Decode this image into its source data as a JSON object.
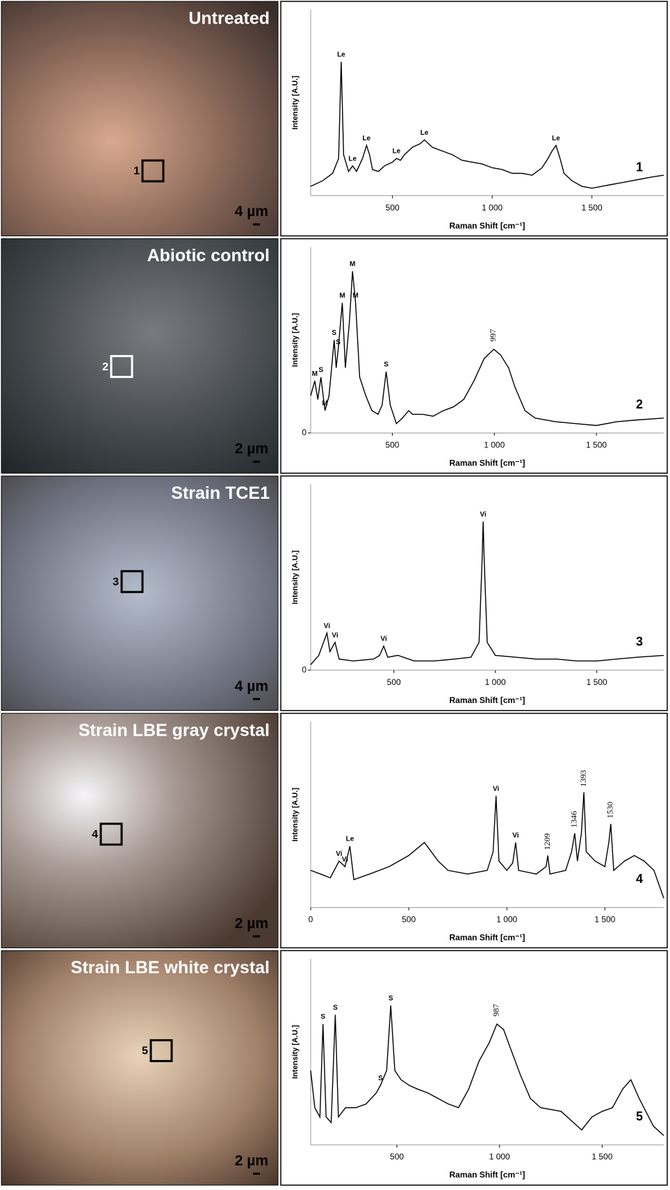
{
  "photos": [
    {
      "title": "Untreated",
      "scale": "4 µm",
      "marker": "1"
    },
    {
      "title": "Abiotic control",
      "scale": "2 µm",
      "marker": "2"
    },
    {
      "title": "Strain TCE1",
      "scale": "4 µm",
      "marker": "3"
    },
    {
      "title": "Strain LBE gray crystal",
      "scale": "2 µm",
      "marker": "4"
    },
    {
      "title": "Strain LBE white crystal",
      "scale": "2 µm",
      "marker": "5"
    }
  ],
  "chart_data": [
    {
      "type": "line",
      "x_label": "Raman Shift [cm⁻¹]",
      "y_label": "Intensity [A.U.]",
      "panel_label": "1",
      "color": "#000000",
      "xlim": [
        90,
        1860
      ],
      "ylim": [
        0,
        100
      ],
      "xticks": [
        500,
        {
          "value": 1000,
          "label": "1 000"
        },
        {
          "value": 1500,
          "label": "1 500"
        }
      ],
      "yticks": [],
      "x": [
        90,
        150,
        200,
        230,
        243,
        255,
        280,
        300,
        320,
        350,
        370,
        385,
        400,
        430,
        460,
        500,
        520,
        540,
        560,
        600,
        640,
        660,
        700,
        750,
        800,
        850,
        900,
        950,
        1000,
        1050,
        1100,
        1150,
        1200,
        1250,
        1280,
        1300,
        1320,
        1340,
        1360,
        1400,
        1450,
        1500,
        1550,
        1600,
        1650,
        1700,
        1750,
        1800,
        1860
      ],
      "values": [
        5,
        8,
        12,
        20,
        72,
        22,
        13,
        16,
        13,
        20,
        27,
        22,
        14,
        13,
        16,
        18,
        20,
        19,
        22,
        26,
        28,
        30,
        26,
        24,
        22,
        19,
        18,
        17,
        15,
        14,
        12,
        12,
        11,
        15,
        20,
        24,
        27,
        20,
        12,
        8,
        5,
        4,
        5,
        6,
        7,
        8,
        9,
        10,
        11
      ],
      "annotations": [
        {
          "label": "Le",
          "x": 243
        },
        {
          "label": "Le",
          "x": 300
        },
        {
          "label": "Le",
          "x": 370
        },
        {
          "label": "Le",
          "x": 520
        },
        {
          "label": "Le",
          "x": 660
        },
        {
          "label": "Le",
          "x": 1320
        }
      ]
    },
    {
      "type": "line",
      "x_label": "Raman Shift [cm⁻¹]",
      "y_label": "Intensity [A.U.]",
      "panel_label": "2",
      "color": "#000000",
      "xlim": [
        100,
        1830
      ],
      "ylim": [
        0,
        100
      ],
      "xticks": [
        500,
        {
          "value": 1000,
          "label": "1 000"
        },
        {
          "value": 1500,
          "label": "1 500"
        }
      ],
      "yticks": [
        0
      ],
      "x": [
        100,
        120,
        135,
        150,
        170,
        190,
        215,
        225,
        235,
        255,
        270,
        290,
        305,
        320,
        340,
        370,
        400,
        430,
        450,
        470,
        490,
        520,
        550,
        580,
        600,
        650,
        700,
        750,
        800,
        850,
        900,
        950,
        997,
        1030,
        1070,
        1100,
        1150,
        1200,
        1300,
        1400,
        1500,
        1600,
        1700,
        1830
      ],
      "values": [
        20,
        28,
        18,
        30,
        12,
        20,
        50,
        35,
        45,
        70,
        35,
        60,
        87,
        70,
        30,
        20,
        12,
        10,
        15,
        33,
        15,
        5,
        8,
        12,
        10,
        10,
        9,
        12,
        14,
        18,
        28,
        40,
        45,
        42,
        35,
        25,
        12,
        8,
        6,
        5,
        4,
        6,
        7,
        8
      ],
      "annotations": [
        {
          "label": "M",
          "x": 120
        },
        {
          "label": "S",
          "x": 150
        },
        {
          "label": "M",
          "x": 170
        },
        {
          "label": "S",
          "x": 215
        },
        {
          "label": "S",
          "x": 235
        },
        {
          "label": "M",
          "x": 255
        },
        {
          "label": "M",
          "x": 305
        },
        {
          "label": "M",
          "x": 320
        },
        {
          "label": "S",
          "x": 470
        },
        {
          "label": "997",
          "x": 997
        }
      ]
    },
    {
      "type": "line",
      "x_label": "Raman Shift [cm⁻¹]",
      "y_label": "Intensity [A.U.]",
      "panel_label": "3",
      "color": "#000000",
      "xlim": [
        90,
        1830
      ],
      "ylim": [
        0,
        100
      ],
      "xticks": [
        500,
        {
          "value": 1000,
          "label": "1 000"
        },
        {
          "value": 1500,
          "label": "1 500"
        }
      ],
      "yticks": [
        0
      ],
      "x": [
        90,
        130,
        150,
        170,
        185,
        210,
        230,
        300,
        400,
        430,
        450,
        470,
        520,
        600,
        700,
        800,
        880,
        920,
        935,
        940,
        945,
        960,
        1000,
        1100,
        1200,
        1300,
        1400,
        1500,
        1600,
        1700,
        1830
      ],
      "values": [
        3,
        8,
        14,
        20,
        10,
        15,
        6,
        5,
        6,
        8,
        13,
        7,
        8,
        5,
        5,
        6,
        7,
        15,
        60,
        80,
        60,
        15,
        8,
        7,
        6,
        6,
        5,
        5,
        6,
        7,
        8
      ],
      "annotations": [
        {
          "label": "Vi",
          "x": 170
        },
        {
          "label": "Vi",
          "x": 210
        },
        {
          "label": "Vi",
          "x": 450
        },
        {
          "label": "Vi",
          "x": 940
        }
      ]
    },
    {
      "type": "line",
      "x_label": "Raman Shift [cm⁻¹]",
      "y_label": "Intensity [A.U.]",
      "panel_label": "4",
      "color": "#000000",
      "xlim": [
        0,
        1800
      ],
      "ylim": [
        0,
        100
      ],
      "xticks": [
        0,
        500,
        {
          "value": 1000,
          "label": "1 000"
        },
        {
          "value": 1500,
          "label": "1 500"
        }
      ],
      "yticks": [],
      "x": [
        0,
        50,
        100,
        145,
        175,
        200,
        220,
        300,
        400,
        500,
        580,
        650,
        700,
        800,
        900,
        930,
        945,
        960,
        1000,
        1030,
        1045,
        1060,
        1150,
        1200,
        1209,
        1220,
        1300,
        1330,
        1346,
        1360,
        1380,
        1393,
        1405,
        1450,
        1500,
        1520,
        1530,
        1545,
        1600,
        1650,
        1700,
        1750,
        1800
      ],
      "values": [
        20,
        18,
        16,
        25,
        22,
        33,
        15,
        18,
        22,
        28,
        35,
        25,
        20,
        18,
        20,
        30,
        60,
        25,
        20,
        24,
        35,
        20,
        18,
        22,
        28,
        18,
        20,
        30,
        40,
        25,
        40,
        62,
        30,
        25,
        22,
        35,
        45,
        20,
        25,
        28,
        25,
        20,
        5
      ],
      "annotations": [
        {
          "label": "Vi",
          "x": 145
        },
        {
          "label": "Vi",
          "x": 175
        },
        {
          "label": "Le",
          "x": 200
        },
        {
          "label": "Vi",
          "x": 945
        },
        {
          "label": "Vi",
          "x": 1045
        },
        {
          "label": "1209",
          "x": 1209
        },
        {
          "label": "1346",
          "x": 1346
        },
        {
          "label": "1393",
          "x": 1393
        },
        {
          "label": "1530",
          "x": 1530
        }
      ]
    },
    {
      "type": "line",
      "x_label": "Raman Shift [cm⁻¹]",
      "y_label": "Intensity [A.U.]",
      "panel_label": "5",
      "color": "#000000",
      "xlim": [
        80,
        1800
      ],
      "ylim": [
        0,
        100
      ],
      "xticks": [
        500,
        {
          "value": 1000,
          "label": "1 000"
        },
        {
          "value": 1500,
          "label": "1 500"
        }
      ],
      "yticks": [],
      "x": [
        80,
        100,
        125,
        140,
        155,
        180,
        200,
        215,
        250,
        300,
        350,
        400,
        420,
        450,
        470,
        490,
        520,
        560,
        600,
        650,
        700,
        750,
        800,
        850,
        900,
        950,
        987,
        1020,
        1060,
        1100,
        1150,
        1200,
        1300,
        1400,
        1450,
        1500,
        1550,
        1600,
        1640,
        1680,
        1750,
        1800
      ],
      "values": [
        40,
        20,
        15,
        65,
        15,
        12,
        70,
        15,
        20,
        20,
        22,
        28,
        32,
        40,
        75,
        40,
        35,
        32,
        30,
        28,
        25,
        22,
        20,
        30,
        45,
        55,
        65,
        62,
        50,
        38,
        25,
        20,
        18,
        8,
        15,
        18,
        20,
        30,
        35,
        25,
        10,
        5
      ],
      "annotations": [
        {
          "label": "S",
          "x": 140
        },
        {
          "label": "S",
          "x": 200
        },
        {
          "label": "S",
          "x": 420
        },
        {
          "label": "S",
          "x": 470
        },
        {
          "label": "987",
          "x": 987
        }
      ]
    }
  ]
}
